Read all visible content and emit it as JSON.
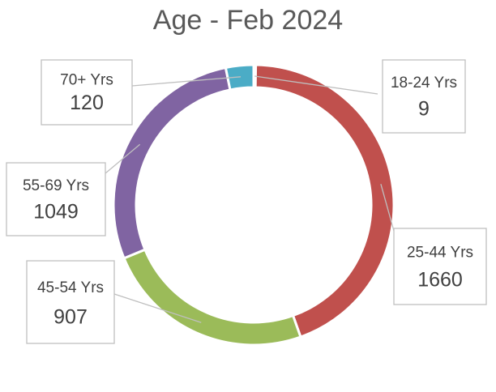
{
  "chart_data": {
    "type": "pie",
    "variant": "doughnut",
    "title": "Age - Feb 2024",
    "categories": [
      "18-24 Yrs",
      "25-44 Yrs",
      "45-54 Yrs",
      "55-69 Yrs",
      "70+ Yrs"
    ],
    "values": [
      9,
      1660,
      907,
      1049,
      120
    ],
    "colors": [
      "#4BACC6",
      "#C0504D",
      "#9BBB59",
      "#8064A2",
      "#4BACC6"
    ],
    "legend": "none",
    "data_labels": "callouts with category name and value"
  }
}
